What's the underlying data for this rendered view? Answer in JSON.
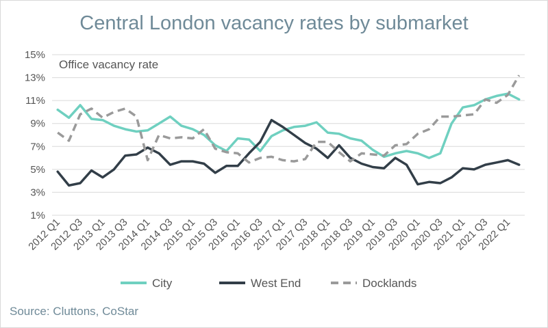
{
  "title": "Central London vacancy rates by submarket",
  "source": "Source: Cluttons, CoStar",
  "colors": {
    "city": "#6fd0c0",
    "west_end": "#323e48",
    "docklands": "#9a9a9a"
  },
  "chart_data": {
    "type": "line",
    "title": "Central London vacancy rates by submarket",
    "ylabel": "Office vacancy rate",
    "ylim": [
      1,
      15
    ],
    "yticks": [
      "1%",
      "3%",
      "5%",
      "7%",
      "9%",
      "11%",
      "13%",
      "15%"
    ],
    "ytick_values": [
      1,
      3,
      5,
      7,
      9,
      11,
      13,
      15
    ],
    "x": [
      "2012 Q1",
      "2012 Q2",
      "2012 Q3",
      "2012 Q4",
      "2013 Q1",
      "2013 Q2",
      "2013 Q3",
      "2013 Q4",
      "2014 Q1",
      "2014 Q2",
      "2014 Q3",
      "2014 Q4",
      "2015 Q1",
      "2015 Q2",
      "2015 Q3",
      "2015 Q4",
      "2016 Q1",
      "2016 Q2",
      "2016 Q3",
      "2016 Q4",
      "2017 Q1",
      "2017 Q2",
      "2017 Q3",
      "2017 Q4",
      "2018 Q1",
      "2018 Q2",
      "2018 Q3",
      "2018 Q4",
      "2019 Q1",
      "2019 Q2",
      "2019 Q3",
      "2019 Q4",
      "2020 Q1",
      "2020 Q2",
      "2020 Q3",
      "2020 Q4",
      "2021 Q1",
      "2021 Q2",
      "2021 Q3",
      "2021 Q4",
      "2022 Q1",
      "2022 Q2"
    ],
    "xtick_labels": [
      "2012 Q1",
      "2012 Q3",
      "2013 Q1",
      "2013 Q3",
      "2014 Q1",
      "2014 Q3",
      "2015 Q1",
      "2015 Q3",
      "2016 Q1",
      "2016 Q3",
      "2017 Q1",
      "2017 Q3",
      "2018 Q1",
      "2018 Q3",
      "2019 Q1",
      "2019 Q3",
      "2020 Q1",
      "2020 Q3",
      "2021 Q1",
      "2021 Q3",
      "2022 Q1"
    ],
    "grid": true,
    "legend": "bottom",
    "series": [
      {
        "name": "City",
        "key": "city",
        "values": [
          10.2,
          9.5,
          10.6,
          9.4,
          9.3,
          8.8,
          8.5,
          8.3,
          8.4,
          9.0,
          9.6,
          8.8,
          8.5,
          8.0,
          7.1,
          6.6,
          7.7,
          7.6,
          6.6,
          7.9,
          8.4,
          8.7,
          8.8,
          9.1,
          8.2,
          8.1,
          7.7,
          7.5,
          6.7,
          6.1,
          6.4,
          6.6,
          6.4,
          6.0,
          6.4,
          9.0,
          10.4,
          10.6,
          11.1,
          11.4,
          11.6,
          11.1
        ]
      },
      {
        "name": "West End",
        "key": "west_end",
        "values": [
          4.8,
          3.6,
          3.8,
          4.9,
          4.3,
          5.0,
          6.2,
          6.3,
          6.9,
          6.4,
          5.4,
          5.7,
          5.7,
          5.5,
          4.7,
          5.3,
          5.3,
          6.4,
          7.4,
          9.3,
          8.7,
          8.0,
          7.3,
          6.8,
          6.0,
          7.1,
          6.0,
          5.5,
          5.2,
          5.1,
          6.0,
          5.4,
          3.7,
          3.9,
          3.8,
          4.3,
          5.1,
          5.0,
          5.4,
          5.6,
          5.8,
          5.4
        ]
      },
      {
        "name": "Docklands",
        "key": "docklands",
        "values": [
          8.2,
          7.5,
          9.8,
          10.3,
          9.5,
          10.0,
          10.3,
          9.6,
          5.8,
          8.0,
          7.7,
          7.8,
          7.7,
          8.5,
          6.8,
          6.5,
          6.4,
          5.6,
          6.0,
          6.1,
          5.8,
          5.7,
          5.9,
          7.4,
          7.4,
          6.5,
          5.7,
          6.4,
          6.3,
          6.2,
          7.1,
          7.2,
          8.1,
          8.5,
          9.6,
          9.6,
          9.7,
          9.8,
          11.1,
          10.8,
          11.5,
          13.2
        ]
      }
    ]
  }
}
